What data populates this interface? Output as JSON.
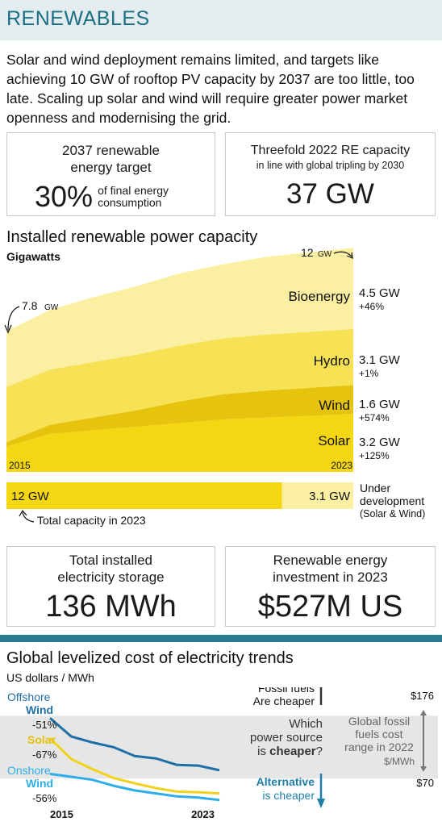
{
  "header": {
    "title": "RENEWABLES"
  },
  "intro": "Solar and wind deployment remains limited, and targets like achieving 10 GW of rooftop PV capacity by 2037 are too little, too late. Scaling up solar and wind will require greater power market openness and modernising the grid.",
  "stats": {
    "target": {
      "label_line1": "2037 renewable",
      "label_line2": "energy target",
      "value": "30%",
      "note_line1": "of final energy",
      "note_line2": "consumption"
    },
    "threefold": {
      "label_line1": "Threefold 2022 RE capacity",
      "label_line2": "in line with global tripling by 2030",
      "value": "37 GW"
    },
    "storage": {
      "label_line1": "Total installed",
      "label_line2": "electricity storage",
      "value": "136 MWh"
    },
    "investment": {
      "label_line1": "Renewable energy",
      "label_line2": "investment in 2023",
      "value": "$527M US"
    }
  },
  "chart_data": [
    {
      "type": "area",
      "title": "Installed renewable power capacity",
      "ylabel": "Gigawatts",
      "x": [
        2015,
        2016,
        2017,
        2018,
        2019,
        2020,
        2021,
        2022,
        2023
      ],
      "x_labels": [
        "2015",
        "2023"
      ],
      "series": [
        {
          "name": "Solar",
          "values": [
            1.4,
            2.1,
            2.3,
            2.5,
            2.7,
            2.9,
            3.0,
            3.1,
            3.2
          ],
          "color": "#f4d612",
          "value_label": "3.2 GW",
          "change": "+125%"
        },
        {
          "name": "Wind",
          "values": [
            0.24,
            0.5,
            0.7,
            0.9,
            1.2,
            1.4,
            1.5,
            1.55,
            1.6
          ],
          "color": "#e6c40e",
          "value_label": "1.6 GW",
          "change": "+574%"
        },
        {
          "name": "Hydro",
          "values": [
            3.05,
            3.06,
            3.07,
            3.08,
            3.09,
            3.09,
            3.1,
            3.1,
            3.1
          ],
          "color": "#f7e255",
          "value_label": "3.1 GW",
          "change": "+1%"
        },
        {
          "name": "Bioenergy",
          "values": [
            3.1,
            3.3,
            3.6,
            3.8,
            4.0,
            4.1,
            4.3,
            4.4,
            4.5
          ],
          "color": "#fbf0a2",
          "value_label": "4.5 GW",
          "change": "+46%"
        }
      ],
      "annotations": {
        "start_value": "7.8",
        "start_unit": "GW",
        "end_value": "12",
        "end_unit": "GW"
      },
      "ylim": [
        0,
        12.5
      ]
    },
    {
      "type": "bar",
      "categories": [
        "Total capacity in 2023",
        "Under development (Solar & Wind)"
      ],
      "values": [
        12,
        3.1
      ],
      "value_labels": [
        "12 GW",
        "3.1 GW"
      ],
      "colors": [
        "#f4d612",
        "#fbf0a2"
      ],
      "side_label_line1": "Under",
      "side_label_line2": "development",
      "side_label_line3": "(Solar & Wind)",
      "note": "Total capacity in 2023"
    },
    {
      "type": "line",
      "title": "Global levelized cost of electricity trends",
      "ylabel": "US dollars / MWh",
      "x": [
        2015,
        2016,
        2017,
        2018,
        2019,
        2020,
        2021,
        2022,
        2023
      ],
      "x_labels": [
        "2015",
        "2023"
      ],
      "series": [
        {
          "name": "Offshore Wind",
          "change": "-51%",
          "color": "#1f6fa8",
          "values": [
            172,
            141,
            131,
            123,
            108,
            104,
            93,
            92,
            84
          ]
        },
        {
          "name": "Solar",
          "change": "-67%",
          "color": "#f1d31b",
          "values": [
            138,
            103,
            86,
            71,
            62,
            54,
            48,
            47,
            45
          ]
        },
        {
          "name": "Onshore Wind",
          "change": "-56%",
          "color": "#2eaee8",
          "values": [
            78,
            73,
            68,
            58,
            50,
            45,
            40,
            38,
            34
          ]
        }
      ],
      "range_band": {
        "low": 70,
        "high": 176,
        "low_label": "$70",
        "high_label": "$176",
        "label_line1": "Global fossil",
        "label_line2": "fuels cost",
        "label_line3": "range in 2022",
        "label_unit": "$/MWh"
      },
      "question": {
        "line1": "Which",
        "line2": "power source",
        "line3_pre": "is ",
        "line3_bold": "cheaper",
        "line3_post": "?"
      },
      "fossil": {
        "title": "Fossil fuels",
        "sub": "Are cheaper"
      },
      "alternative": {
        "title": "Alternative",
        "sub": "is cheaper"
      },
      "ylim": [
        20,
        190
      ]
    }
  ]
}
